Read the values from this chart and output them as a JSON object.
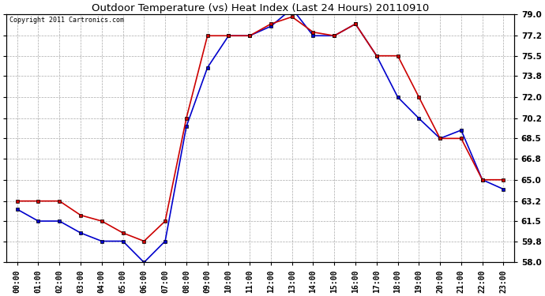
{
  "title": "Outdoor Temperature (vs) Heat Index (Last 24 Hours) 20110910",
  "copyright": "Copyright 2011 Cartronics.com",
  "x_labels": [
    "00:00",
    "01:00",
    "02:00",
    "03:00",
    "04:00",
    "05:00",
    "06:00",
    "07:00",
    "08:00",
    "09:00",
    "10:00",
    "11:00",
    "12:00",
    "13:00",
    "14:00",
    "15:00",
    "16:00",
    "17:00",
    "18:00",
    "19:00",
    "20:00",
    "21:00",
    "22:00",
    "23:00"
  ],
  "temp_blue": [
    62.5,
    61.5,
    61.5,
    60.5,
    59.8,
    59.8,
    58.0,
    59.8,
    69.5,
    74.5,
    77.2,
    77.2,
    78.0,
    79.5,
    77.2,
    77.2,
    78.2,
    75.5,
    72.0,
    70.2,
    68.5,
    69.2,
    65.0,
    64.2
  ],
  "heat_red": [
    63.2,
    63.2,
    63.2,
    62.0,
    61.5,
    60.5,
    59.8,
    61.5,
    70.2,
    77.2,
    77.2,
    77.2,
    78.2,
    78.8,
    77.5,
    77.2,
    78.2,
    75.5,
    75.5,
    72.0,
    68.5,
    68.5,
    65.0,
    65.0
  ],
  "ylim": [
    58.0,
    79.0
  ],
  "yticks": [
    58.0,
    59.8,
    61.5,
    63.2,
    65.0,
    66.8,
    68.5,
    70.2,
    72.0,
    73.8,
    75.5,
    77.2,
    79.0
  ],
  "bg_color": "#ffffff",
  "grid_color": "#aaaaaa",
  "blue_color": "#0000cc",
  "red_color": "#cc0000",
  "title_color": "#000000",
  "copyright_color": "#000000"
}
